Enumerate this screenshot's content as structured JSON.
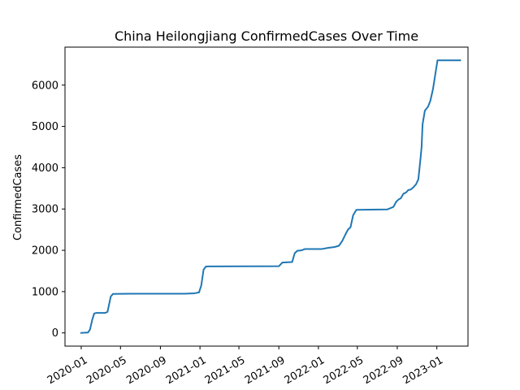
{
  "chart_data": {
    "type": "line",
    "title": "China Heilongjiang ConfirmedCases Over Time",
    "xlabel": "",
    "ylabel": "ConfirmedCases",
    "x_ticks": [
      "2020-01",
      "2020-05",
      "2020-09",
      "2021-01",
      "2021-05",
      "2021-09",
      "2022-01",
      "2022-05",
      "2022-09",
      "2023-01"
    ],
    "y_ticks": [
      0,
      1000,
      2000,
      3000,
      4000,
      5000,
      6000
    ],
    "ylim": [
      -320,
      6920
    ],
    "xlim": [
      "2019-11-12",
      "2023-04-07"
    ],
    "grid": false,
    "colors": {
      "line": "#1f77b4"
    },
    "series": [
      {
        "x": [
          "2020-01-01",
          "2020-01-22",
          "2020-01-28",
          "2020-02-04",
          "2020-02-10",
          "2020-02-17",
          "2020-03-15",
          "2020-03-22",
          "2020-04-01",
          "2020-04-08",
          "2020-06-01",
          "2020-10-01",
          "2020-11-15",
          "2020-12-15",
          "2020-12-29",
          "2021-01-05",
          "2021-01-12",
          "2021-01-19",
          "2021-01-26",
          "2021-02-05",
          "2021-09-01",
          "2021-09-12",
          "2021-10-12",
          "2021-10-20",
          "2021-10-28",
          "2021-11-10",
          "2021-11-20",
          "2021-12-31",
          "2022-01-10",
          "2022-02-01",
          "2022-02-10",
          "2022-02-20",
          "2022-03-05",
          "2022-03-15",
          "2022-03-25",
          "2022-04-02",
          "2022-04-10",
          "2022-04-18",
          "2022-04-28",
          "2022-08-01",
          "2022-08-20",
          "2022-08-29",
          "2022-09-05",
          "2022-09-12",
          "2022-09-20",
          "2022-09-28",
          "2022-10-05",
          "2022-10-12",
          "2022-10-20",
          "2022-10-29",
          "2022-11-05",
          "2022-11-12",
          "2022-11-15",
          "2022-11-18",
          "2022-11-25",
          "2022-12-05",
          "2022-12-12",
          "2022-12-20",
          "2022-12-28",
          "2023-01-03",
          "2023-03-14"
        ],
        "y": [
          0,
          10,
          80,
          320,
          470,
          485,
          485,
          510,
          880,
          945,
          950,
          950,
          950,
          960,
          980,
          1150,
          1530,
          1605,
          1610,
          1610,
          1615,
          1705,
          1715,
          1930,
          1990,
          2000,
          2030,
          2030,
          2030,
          2060,
          2070,
          2080,
          2110,
          2220,
          2380,
          2500,
          2560,
          2850,
          2980,
          2990,
          3050,
          3180,
          3230,
          3260,
          3370,
          3400,
          3460,
          3470,
          3520,
          3600,
          3720,
          4250,
          4500,
          5050,
          5380,
          5480,
          5620,
          5900,
          6300,
          6600,
          6600
        ]
      }
    ]
  }
}
